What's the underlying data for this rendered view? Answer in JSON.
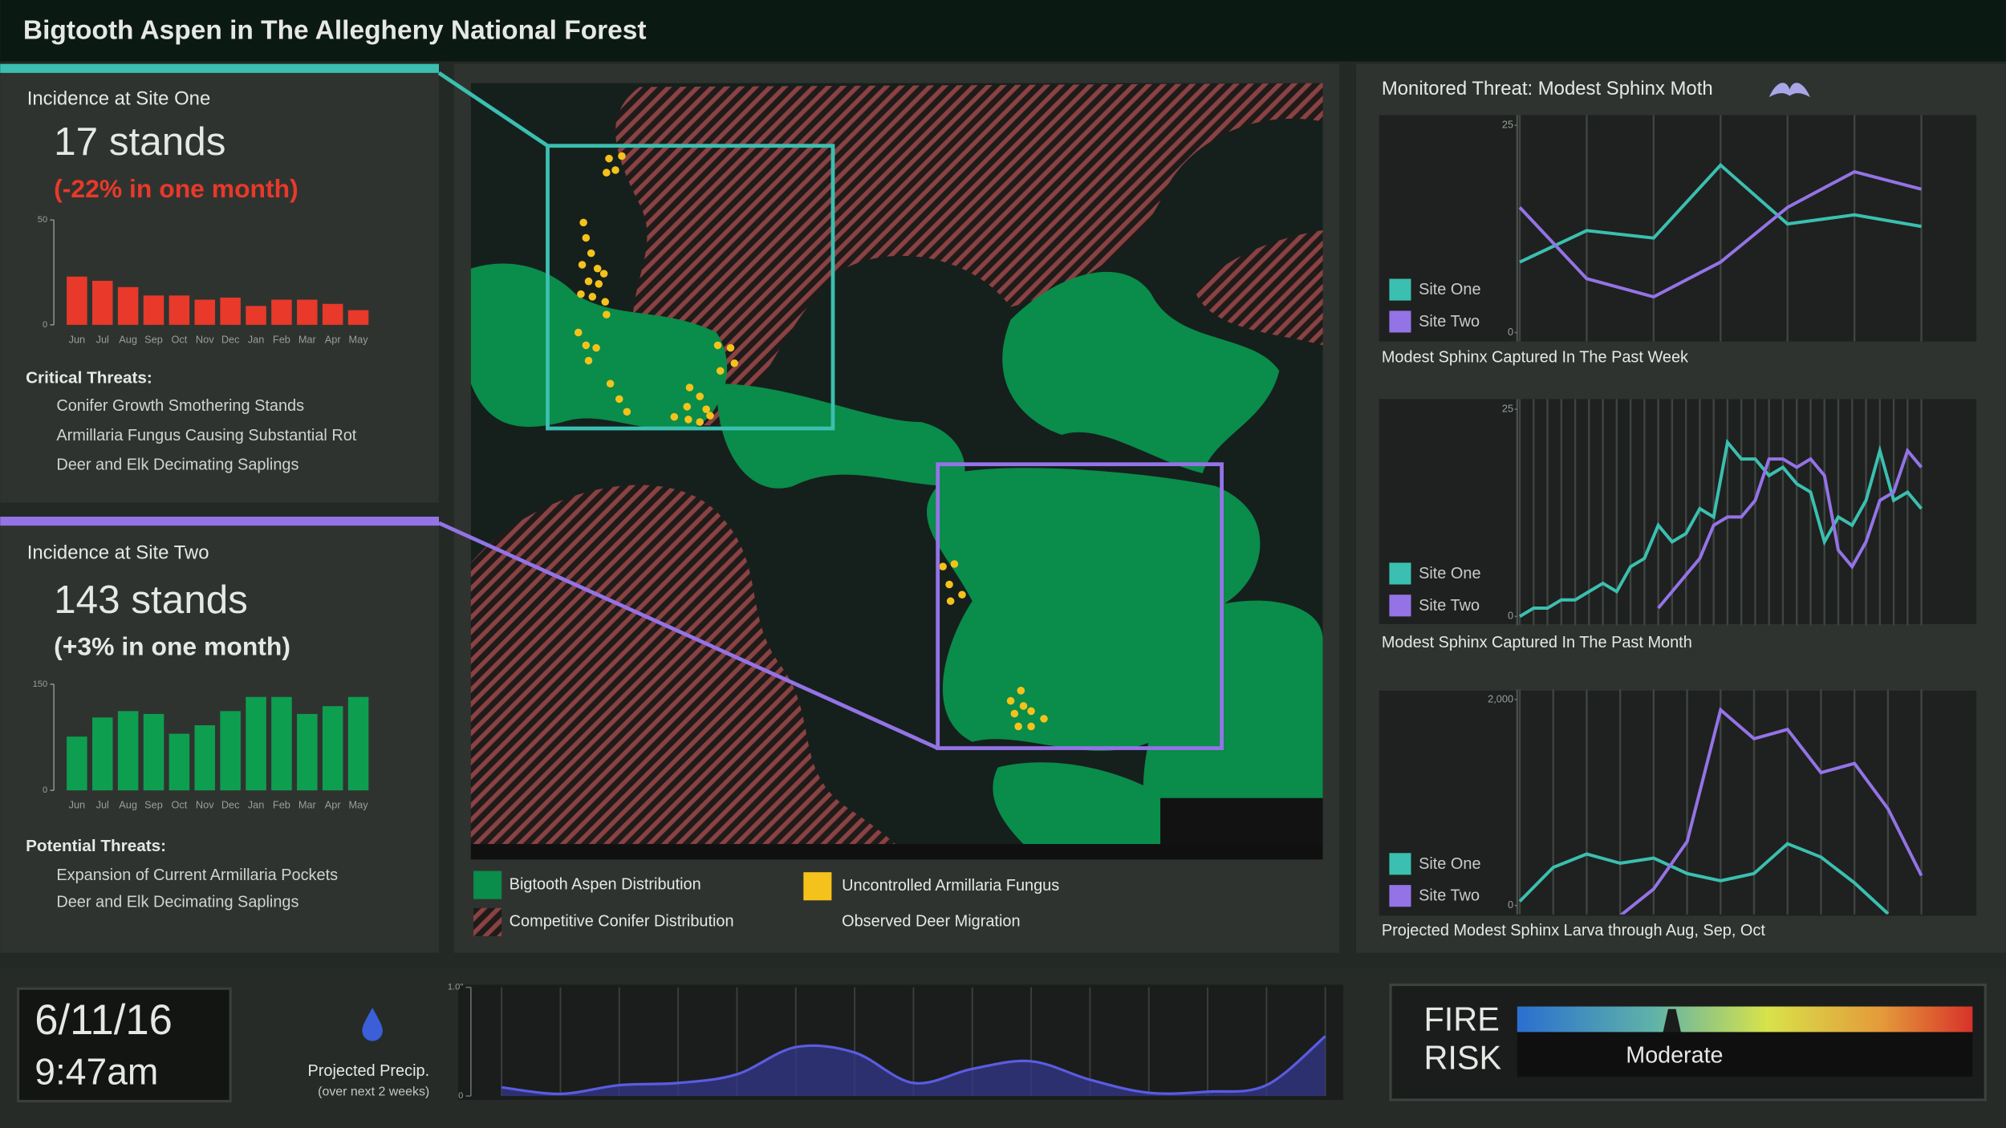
{
  "header": {
    "title": "Bigtooth Aspen in The Allegheny National Forest"
  },
  "sites": [
    {
      "title": "Incidence at Site One",
      "headline": "17 stands",
      "change": "(-22% in one month)",
      "threats_title": "Critical Threats:",
      "threats": [
        "Conifer Growth Smothering Stands",
        "Armillaria Fungus Causing Substantial Rot",
        "Deer and Elk Decimating Saplings"
      ]
    },
    {
      "title": "Incidence at Site Two",
      "headline": "143 stands",
      "change": "(+3% in one month)",
      "threats_title": "Potential Threats:",
      "threats": [
        "Expansion of Current Armillaria Pockets",
        "Deer and Elk Decimating Saplings"
      ]
    }
  ],
  "map": {
    "legend": [
      "Bigtooth Aspen Distribution",
      "Competitive Conifer Distribution",
      "Uncontrolled Armillaria Fungus",
      "Observed Deer Migration"
    ]
  },
  "threat_panel": {
    "title": "Monitored Threat: Modest Sphinx Moth"
  },
  "footer": {
    "date": "6/11/16",
    "time": "9:47am",
    "precip_title": "Projected Precip.",
    "precip_note": "(over next 2 weeks)",
    "fire_label": [
      "FIRE",
      "RISK"
    ],
    "fire_level": "Moderate"
  },
  "chart_data": [
    {
      "type": "bar",
      "categories": [
        "Jun",
        "Jul",
        "Aug",
        "Sep",
        "Oct",
        "Nov",
        "Dec",
        "Jan",
        "Feb",
        "Mar",
        "Apr",
        "May"
      ],
      "values": [
        23,
        21,
        18,
        14,
        14,
        12,
        13,
        9,
        12,
        12,
        10,
        7
      ],
      "color": "#e8392a",
      "ylim": [
        0,
        50
      ],
      "yticks": [
        0,
        50
      ]
    },
    {
      "type": "bar",
      "categories": [
        "Jun",
        "Jul",
        "Aug",
        "Sep",
        "Oct",
        "Nov",
        "Dec",
        "Jan",
        "Feb",
        "Mar",
        "Apr",
        "May"
      ],
      "values": [
        76,
        103,
        112,
        108,
        80,
        92,
        112,
        132,
        132,
        108,
        119,
        132
      ],
      "color": "#0e9e50",
      "ylim": [
        0,
        150
      ],
      "yticks": [
        0,
        150
      ]
    },
    {
      "type": "line",
      "title": "Modest Sphinx Captured In The Past Week",
      "ylim": [
        0,
        25
      ],
      "yticks": [
        0,
        25
      ],
      "grid": true,
      "series": [
        {
          "name": "Site One",
          "color": "#3bbfb0",
          "values": [
            8.5,
            12.3,
            11.4,
            20.2,
            13.1,
            14.2,
            12.8
          ]
        },
        {
          "name": "Site Two",
          "color": "#9473e6",
          "values": [
            15.1,
            6.5,
            4.3,
            8.5,
            15.1,
            19.4,
            17.3
          ]
        }
      ]
    },
    {
      "type": "line",
      "title": "Modest Sphinx Captured In The Past Month",
      "ylim": [
        0,
        25
      ],
      "yticks": [
        0,
        25
      ],
      "grid": true,
      "series": [
        {
          "name": "Site One",
          "color": "#3bbfb0",
          "values": [
            0,
            1,
            1,
            2,
            2,
            3,
            4,
            3,
            6,
            7,
            11,
            9,
            10,
            13,
            12,
            21,
            19,
            19,
            17,
            18,
            16,
            15,
            9,
            12,
            11,
            14,
            20,
            14,
            15,
            13
          ]
        },
        {
          "name": "Site Two",
          "color": "#9473e6",
          "values": [
            null,
            null,
            null,
            null,
            null,
            null,
            null,
            null,
            null,
            null,
            1,
            3,
            5,
            7,
            11,
            12,
            12,
            14,
            19,
            19,
            18,
            19,
            17,
            8,
            6,
            9,
            14,
            15,
            20,
            18
          ]
        }
      ]
    },
    {
      "type": "line",
      "title": "Projected Modest Sphinx Larva through Aug, Sep, Oct",
      "ylim": [
        0,
        2000
      ],
      "yticks": [
        0,
        {
          "value": 2000,
          "label": "2,000"
        }
      ],
      "grid": true,
      "series": [
        {
          "name": "Site One",
          "color": "#3bbfb0",
          "values": [
            40,
            370,
            500,
            410,
            460,
            310,
            240,
            310,
            600,
            470,
            220,
            -80,
            null
          ]
        },
        {
          "name": "Site Two",
          "color": "#9473e6",
          "values": [
            null,
            null,
            null,
            -100,
            160,
            620,
            1900,
            1620,
            1710,
            1290,
            1380,
            940,
            290
          ]
        }
      ]
    },
    {
      "type": "area",
      "color": "#5a5ce0",
      "ylim": [
        0,
        1
      ],
      "yticks": [
        0,
        {
          "value": 1,
          "label": "1.0\""
        }
      ],
      "values": [
        0.08,
        0.02,
        0.1,
        0.12,
        0.2,
        0.45,
        0.4,
        0.12,
        0.25,
        0.32,
        0.15,
        0.03,
        0.04,
        0.1,
        0.55
      ]
    }
  ]
}
